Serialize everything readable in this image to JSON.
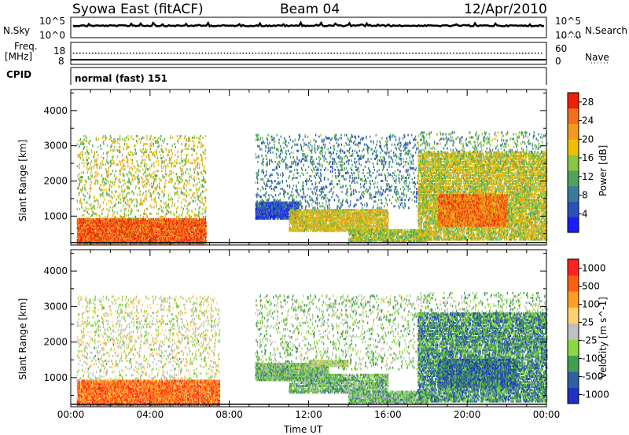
{
  "header": {
    "station": "Syowa East (fitACF)",
    "beam": "Beam 04",
    "date": "12/Apr/2010"
  },
  "top_panels": {
    "nsky_label": "N.Sky",
    "nsky_ticks": [
      "10^5",
      "10^0"
    ],
    "nsearch_label": "N.Search",
    "nsearch_ticks": [
      "10^5",
      "10^0"
    ],
    "freq_label": "Freq.",
    "freq_unit": "[MHz]",
    "freq_ticks": [
      "18",
      "8"
    ],
    "nave_label": "Nave",
    "nave_ticks": [
      "60",
      "0"
    ],
    "cpid_label": "CPID",
    "cpid_value": "normal (fast) 151"
  },
  "colors": {
    "power_scale": [
      "#1a1aff",
      "#2b50b8",
      "#3a7a9a",
      "#4fa35b",
      "#88c840",
      "#f0c000",
      "#f09a20",
      "#f07020",
      "#f02000"
    ],
    "velocity_scale": [
      "#ff2020",
      "#ff6010",
      "#ffa020",
      "#ffd070",
      "#c0c0c0",
      "#8ad840",
      "#3fa050",
      "#2f60a0",
      "#2030c0"
    ]
  },
  "chart_data": [
    {
      "type": "heatmap",
      "title": "",
      "xlabel": "",
      "ylabel": "Slant Range [km]",
      "x_ticks": [
        "00:00",
        "04:00",
        "08:00",
        "12:00",
        "16:00",
        "20:00",
        "00:00"
      ],
      "y_ticks": [
        "1000",
        "2000",
        "3000",
        "4000"
      ],
      "xlim": [
        0,
        24
      ],
      "ylim": [
        180,
        4600
      ],
      "colorbar_label": "Power [dB]",
      "colorbar_ticks": [
        "4",
        "8",
        "12",
        "16",
        "20",
        "24",
        "28"
      ],
      "clim": [
        0,
        30
      ],
      "regions": [
        {
          "t": [
            0.3,
            6.8
          ],
          "r": [
            200,
            900
          ],
          "level": 0.85,
          "density": 0.75
        },
        {
          "t": [
            0.3,
            6.8
          ],
          "r": [
            900,
            3300
          ],
          "level": 0.55,
          "density": 0.08
        },
        {
          "t": [
            9.3,
            11.5
          ],
          "r": [
            900,
            1400
          ],
          "level": 0.15,
          "density": 0.7
        },
        {
          "t": [
            11.0,
            16.0
          ],
          "r": [
            550,
            1200
          ],
          "level": 0.6,
          "density": 0.55
        },
        {
          "t": [
            14.0,
            18.0
          ],
          "r": [
            250,
            600
          ],
          "level": 0.5,
          "density": 0.5
        },
        {
          "t": [
            9.3,
            18.0
          ],
          "r": [
            1200,
            3300
          ],
          "level": 0.3,
          "density": 0.08
        },
        {
          "t": [
            17.5,
            24.0
          ],
          "r": [
            300,
            2800
          ],
          "level": 0.55,
          "density": 0.45
        },
        {
          "t": [
            18.5,
            22.0
          ],
          "r": [
            700,
            1600
          ],
          "level": 0.8,
          "density": 0.7
        },
        {
          "t": [
            17.5,
            24.0
          ],
          "r": [
            2800,
            3400
          ],
          "level": 0.4,
          "density": 0.08
        }
      ]
    },
    {
      "type": "heatmap",
      "title": "",
      "xlabel": "Time UT",
      "ylabel": "Slant Range [km]",
      "x_ticks": [
        "00:00",
        "04:00",
        "08:00",
        "12:00",
        "16:00",
        "20:00",
        "00:00"
      ],
      "y_ticks": [
        "1000",
        "2000",
        "3000",
        "4000"
      ],
      "xlim": [
        0,
        24
      ],
      "ylim": [
        180,
        4600
      ],
      "colorbar_label": "Velocity [m s^-1]",
      "colorbar_ticks": [
        "1000",
        "500",
        "100",
        "25",
        "-25",
        "-100",
        "-500",
        "-1000"
      ],
      "clim": [
        -1000,
        1000
      ],
      "regions": [
        {
          "t": [
            0.3,
            7.5
          ],
          "r": [
            200,
            900
          ],
          "level": 0.2,
          "density": 0.7
        },
        {
          "t": [
            0.3,
            7.5
          ],
          "r": [
            900,
            3300
          ],
          "level": 0.5,
          "density": 0.08
        },
        {
          "t": [
            9.3,
            13.0
          ],
          "r": [
            900,
            1400
          ],
          "level": 0.65,
          "density": 0.7
        },
        {
          "t": [
            11.0,
            16.0
          ],
          "r": [
            550,
            1100
          ],
          "level": 0.65,
          "density": 0.5
        },
        {
          "t": [
            12.0,
            14.0
          ],
          "r": [
            1300,
            1500
          ],
          "level": 0.5,
          "density": 0.6
        },
        {
          "t": [
            14.0,
            18.0
          ],
          "r": [
            250,
            600
          ],
          "level": 0.65,
          "density": 0.5
        },
        {
          "t": [
            9.3,
            18.0
          ],
          "r": [
            1200,
            3300
          ],
          "level": 0.6,
          "density": 0.07
        },
        {
          "t": [
            17.5,
            24.0
          ],
          "r": [
            300,
            2800
          ],
          "level": 0.75,
          "density": 0.45
        },
        {
          "t": [
            18.5,
            22.5
          ],
          "r": [
            700,
            1500
          ],
          "level": 0.8,
          "density": 0.65
        },
        {
          "t": [
            17.5,
            24.0
          ],
          "r": [
            2800,
            3400
          ],
          "level": 0.6,
          "density": 0.07
        }
      ]
    }
  ]
}
